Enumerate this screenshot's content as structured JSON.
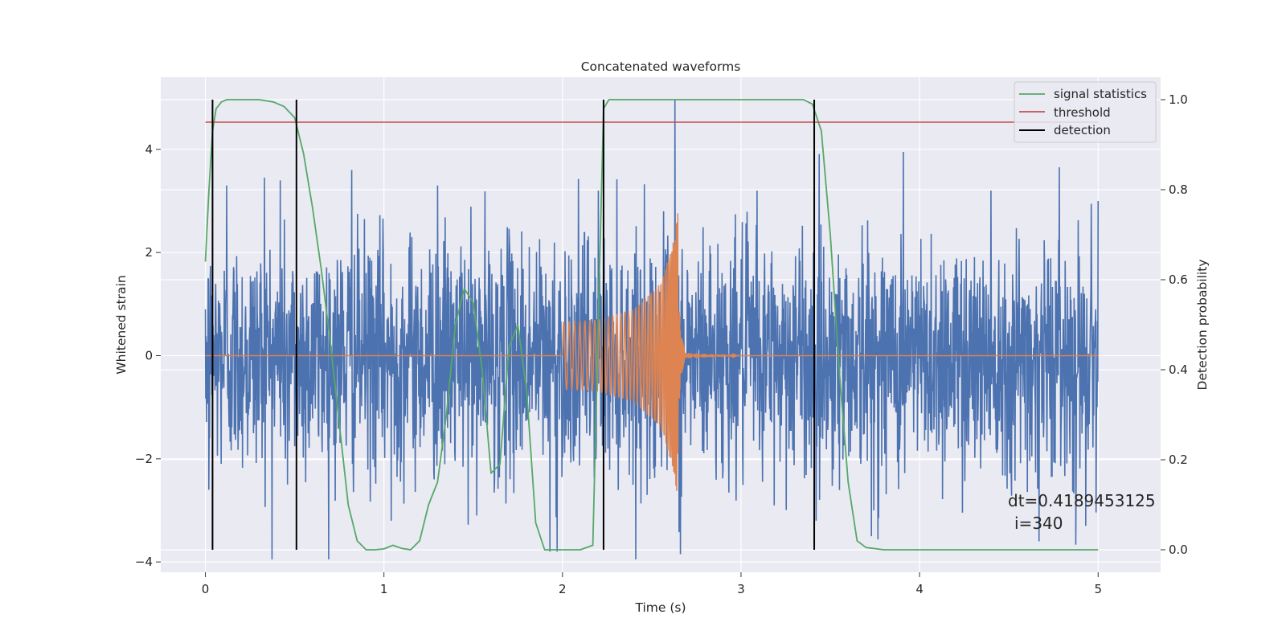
{
  "chart_data": {
    "type": "line",
    "title": "Concatenated waveforms",
    "xlabel": "Time (s)",
    "ylabel": "Whitened strain",
    "y2label": "Detection probability",
    "xlim": [
      -0.25,
      5.35
    ],
    "ylim": [
      -4.2,
      5.4
    ],
    "y2lim": [
      -0.05,
      1.05
    ],
    "xticks": [
      0,
      1,
      2,
      3,
      4,
      5
    ],
    "xtick_labels": [
      "0",
      "1",
      "2",
      "3",
      "4",
      "5"
    ],
    "yticks": [
      -4,
      -2,
      0,
      2,
      4
    ],
    "ytick_labels": [
      "−4",
      "−2",
      "0",
      "2",
      "4"
    ],
    "y2ticks": [
      0.0,
      0.2,
      0.4,
      0.6,
      0.8,
      1.0
    ],
    "y2tick_labels": [
      "0.0",
      "0.2",
      "0.4",
      "0.6",
      "0.8",
      "1.0"
    ],
    "grid": true,
    "legend_position": "top-right",
    "annotation": {
      "line1": "dt=0.4189453125",
      "line2": "i=340"
    },
    "colors": {
      "strain": "#4c72b0",
      "template": "#dd8452",
      "signal": "#55a868",
      "threshold": "#c44e52",
      "detection": "#000000",
      "axes_bg": "#eaeaf2",
      "grid": "#ffffff"
    },
    "series": [
      {
        "name": "",
        "kind": "noise",
        "axis": "left",
        "x_range": [
          0,
          5
        ],
        "amplitude_typical": 1.2,
        "peaks": [
          [
            0.0,
            0.9
          ],
          [
            0.02,
            -2.6
          ],
          [
            0.12,
            3.3
          ],
          [
            0.33,
            3.45
          ],
          [
            0.42,
            3.4
          ],
          [
            0.46,
            -2.5
          ],
          [
            0.82,
            3.6
          ],
          [
            1.04,
            -3.2
          ],
          [
            1.3,
            3.3
          ],
          [
            1.52,
            -3.1
          ],
          [
            1.93,
            -3.8
          ],
          [
            1.97,
            -3.8
          ],
          [
            2.2,
            3.2
          ],
          [
            2.63,
            5.0
          ],
          [
            2.66,
            -3.85
          ],
          [
            3.09,
            3.2
          ],
          [
            3.42,
            -3.2
          ],
          [
            3.73,
            -3.5
          ],
          [
            3.91,
            3.95
          ],
          [
            4.4,
            3.2
          ],
          [
            4.67,
            -3.6
          ],
          [
            4.93,
            -3.3
          ],
          [
            5.0,
            3.0
          ]
        ]
      },
      {
        "name": "",
        "kind": "chirp",
        "axis": "left",
        "x_range": [
          0,
          5
        ],
        "chirp_start": 2.0,
        "chirp_merger": 2.65,
        "envelope": [
          [
            2.0,
            0.65
          ],
          [
            2.2,
            0.7
          ],
          [
            2.4,
            0.9
          ],
          [
            2.55,
            1.4
          ],
          [
            2.62,
            2.2
          ],
          [
            2.65,
            2.85
          ],
          [
            2.66,
            0.4
          ],
          [
            2.7,
            0.05
          ],
          [
            3.0,
            0.0
          ]
        ]
      },
      {
        "name": "signal statistics",
        "kind": "line",
        "axis": "right",
        "x": [
          0.0,
          0.02,
          0.04,
          0.06,
          0.09,
          0.12,
          0.2,
          0.3,
          0.38,
          0.44,
          0.5,
          0.55,
          0.6,
          0.65,
          0.7,
          0.75,
          0.8,
          0.85,
          0.9,
          0.95,
          1.0,
          1.05,
          1.1,
          1.15,
          1.2,
          1.25,
          1.3,
          1.35,
          1.4,
          1.45,
          1.5,
          1.55,
          1.6,
          1.65,
          1.7,
          1.75,
          1.8,
          1.85,
          1.9,
          2.0,
          2.1,
          2.17,
          2.2,
          2.23,
          2.26,
          2.3,
          2.4,
          2.6,
          2.8,
          3.0,
          3.2,
          3.35,
          3.4,
          3.45,
          3.5,
          3.55,
          3.6,
          3.65,
          3.7,
          3.8,
          4.0,
          4.5,
          5.0
        ],
        "y": [
          0.64,
          0.8,
          0.93,
          0.98,
          0.995,
          1.0,
          1.0,
          1.0,
          0.995,
          0.985,
          0.96,
          0.88,
          0.76,
          0.62,
          0.46,
          0.28,
          0.1,
          0.02,
          0.0,
          0.0,
          0.002,
          0.01,
          0.003,
          0.0,
          0.02,
          0.1,
          0.15,
          0.3,
          0.5,
          0.58,
          0.55,
          0.4,
          0.17,
          0.19,
          0.45,
          0.5,
          0.35,
          0.06,
          0.0,
          0.0,
          0.0,
          0.01,
          0.5,
          0.98,
          1.0,
          1.0,
          1.0,
          1.0,
          1.0,
          1.0,
          1.0,
          1.0,
          0.99,
          0.93,
          0.7,
          0.4,
          0.15,
          0.02,
          0.005,
          0.0,
          0.0,
          0.0,
          0.0
        ]
      },
      {
        "name": "threshold",
        "kind": "hline",
        "axis": "right",
        "x": [
          0,
          5
        ],
        "y": 0.95
      },
      {
        "name": "detection",
        "kind": "vlines",
        "axis": "right",
        "x": [
          0.04,
          0.51,
          2.23,
          3.41
        ],
        "ymin": 0.0,
        "ymax": 1.0
      }
    ]
  }
}
